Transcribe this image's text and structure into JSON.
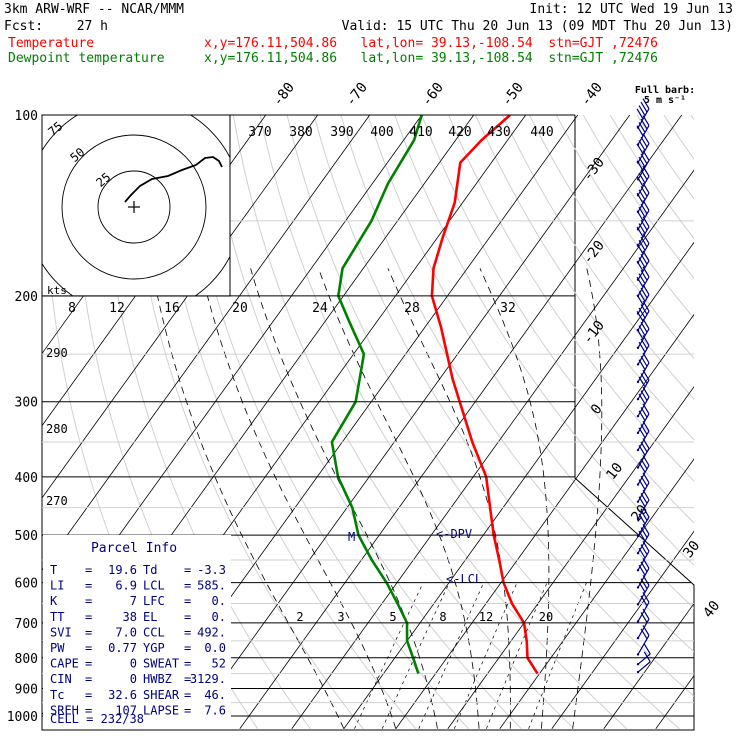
{
  "header": {
    "title": "3km ARW-WRF -- NCAR/MMM",
    "init": "Init: 12 UTC Wed 19 Jun 13",
    "fcst_label": "Fcst:",
    "fcst_value": "27 h",
    "valid": "Valid: 15 UTC Thu 20 Jun 13 (09 MDT Thu 20 Jun 13)",
    "temp_label": "Temperature",
    "dew_label": "Dewpoint temperature",
    "temp_loc": "x,y=176.11,504.86   lat,lon= 39.13,-108.54  stn=GJT ,72476",
    "dew_loc": "x,y=176.11,504.86   lat,lon= 39.13,-108.54  stn=GJT ,72476"
  },
  "colors": {
    "temperature": "#ff0000",
    "dewpoint": "#008000",
    "annotation": "#000080",
    "grid": "#000000",
    "dashed": "#000000",
    "guide": "#d0d0d0",
    "wind": "#000080"
  },
  "barb_legend": {
    "line1": "Full barb:",
    "line2": "5 m s⁻¹"
  },
  "chart_data": {
    "type": "line",
    "title": "",
    "xlabel": "",
    "ylabel": "",
    "y_scale": "log",
    "y_axis": {
      "label": "",
      "ticks": [
        100,
        200,
        300,
        400,
        500,
        600,
        700,
        800,
        900,
        1000
      ]
    },
    "isotherm_labels": [
      "-80",
      "-70",
      "-60",
      "-50",
      "-40",
      "-30",
      "-20",
      "-10",
      "0",
      "10",
      "20",
      "30",
      "40"
    ],
    "theta_labels": [
      "370",
      "380",
      "390",
      "400",
      "410",
      "420",
      "430",
      "440"
    ],
    "theta_left_labels": [
      "290",
      "280",
      "270"
    ],
    "mixing_ratio_labels": [
      "2",
      "3",
      "5",
      "8",
      "12",
      "20"
    ],
    "markers": [
      {
        "label": "M",
        "pressure": 500
      },
      {
        "label": "<-DPV",
        "pressure": 500
      },
      {
        "label": "<-LCL",
        "pressure": 585
      }
    ],
    "series": [
      {
        "name": "Temperature",
        "color": "#ff0000",
        "points": [
          {
            "p": 850,
            "t": 19.6
          },
          {
            "p": 800,
            "t": 15.5
          },
          {
            "p": 750,
            "t": 13.0
          },
          {
            "p": 700,
            "t": 10.0
          },
          {
            "p": 650,
            "t": 5.0
          },
          {
            "p": 600,
            "t": 0.5
          },
          {
            "p": 550,
            "t": -3.5
          },
          {
            "p": 500,
            "t": -8.0
          },
          {
            "p": 450,
            "t": -12.5
          },
          {
            "p": 400,
            "t": -17.5
          },
          {
            "p": 350,
            "t": -25.0
          },
          {
            "p": 300,
            "t": -33.0
          },
          {
            "p": 275,
            "t": -37.5
          },
          {
            "p": 250,
            "t": -42.0
          },
          {
            "p": 225,
            "t": -47.0
          },
          {
            "p": 200,
            "t": -53.0
          },
          {
            "p": 180,
            "t": -56.5
          },
          {
            "p": 160,
            "t": -59.0
          },
          {
            "p": 140,
            "t": -61.5
          },
          {
            "p": 120,
            "t": -66.0
          },
          {
            "p": 110,
            "t": -65.0
          },
          {
            "p": 100,
            "t": -63.0
          }
        ]
      },
      {
        "name": "Dewpoint temperature",
        "color": "#008000",
        "points": [
          {
            "p": 850,
            "t": -3.3
          },
          {
            "p": 800,
            "t": -6.5
          },
          {
            "p": 750,
            "t": -10.0
          },
          {
            "p": 700,
            "t": -12.5
          },
          {
            "p": 650,
            "t": -17.0
          },
          {
            "p": 600,
            "t": -22.0
          },
          {
            "p": 550,
            "t": -28.0
          },
          {
            "p": 500,
            "t": -34.0
          },
          {
            "p": 450,
            "t": -39.0
          },
          {
            "p": 400,
            "t": -46.0
          },
          {
            "p": 350,
            "t": -52.0
          },
          {
            "p": 300,
            "t": -53.0
          },
          {
            "p": 250,
            "t": -58.0
          },
          {
            "p": 220,
            "t": -65.5
          },
          {
            "p": 200,
            "t": -71.0
          },
          {
            "p": 180,
            "t": -74.0
          },
          {
            "p": 150,
            "t": -75.0
          },
          {
            "p": 130,
            "t": -77.0
          },
          {
            "p": 110,
            "t": -78.0
          },
          {
            "p": 100,
            "t": -80.0
          }
        ]
      }
    ],
    "winds": [
      {
        "p": 105,
        "speed_barbs": 4
      },
      {
        "p": 112,
        "speed_barbs": 4
      },
      {
        "p": 120,
        "speed_barbs": 4
      },
      {
        "p": 128,
        "speed_barbs": 4
      },
      {
        "p": 136,
        "speed_barbs": 4
      },
      {
        "p": 145,
        "speed_barbs": 4
      },
      {
        "p": 155,
        "speed_barbs": 4
      },
      {
        "p": 165,
        "speed_barbs": 4
      },
      {
        "p": 176,
        "speed_barbs": 4
      },
      {
        "p": 188,
        "speed_barbs": 4
      },
      {
        "p": 200,
        "speed_barbs": 4
      },
      {
        "p": 214,
        "speed_barbs": 4
      },
      {
        "p": 228,
        "speed_barbs": 4
      },
      {
        "p": 244,
        "speed_barbs": 4
      },
      {
        "p": 260,
        "speed_barbs": 3
      },
      {
        "p": 278,
        "speed_barbs": 3
      },
      {
        "p": 297,
        "speed_barbs": 3
      },
      {
        "p": 317,
        "speed_barbs": 3
      },
      {
        "p": 338,
        "speed_barbs": 3
      },
      {
        "p": 361,
        "speed_barbs": 3
      },
      {
        "p": 386,
        "speed_barbs": 3
      },
      {
        "p": 412,
        "speed_barbs": 3
      },
      {
        "p": 440,
        "speed_barbs": 3
      },
      {
        "p": 470,
        "speed_barbs": 3
      },
      {
        "p": 502,
        "speed_barbs": 3
      },
      {
        "p": 536,
        "speed_barbs": 3
      },
      {
        "p": 572,
        "speed_barbs": 3
      },
      {
        "p": 611,
        "speed_barbs": 3
      },
      {
        "p": 652,
        "speed_barbs": 3
      },
      {
        "p": 696,
        "speed_barbs": 2
      },
      {
        "p": 742,
        "speed_barbs": 2
      },
      {
        "p": 790,
        "speed_barbs": 2
      },
      {
        "p": 820,
        "speed_barbs": 1
      },
      {
        "p": 845,
        "speed_barbs": 1
      }
    ]
  },
  "hodograph": {
    "unit_label": "kts",
    "ring_labels": [
      "75",
      "50",
      "25"
    ],
    "scale_labels": [
      "8",
      "12",
      "16",
      "20",
      "24",
      "28",
      "32"
    ]
  },
  "parcel_info": {
    "title": "Parcel Info",
    "rows": [
      {
        "k1": "T",
        "v1": "19.6",
        "k2": "Td",
        "v2": "-3.3"
      },
      {
        "k1": "LI",
        "v1": "6.9",
        "k2": "LCL",
        "v2": "585."
      },
      {
        "k1": "K",
        "v1": "7",
        "k2": "LFC",
        "v2": "0."
      },
      {
        "k1": "TT",
        "v1": "38",
        "k2": "EL",
        "v2": "0."
      },
      {
        "k1": "SVI",
        "v1": "7.0",
        "k2": "CCL",
        "v2": "492."
      },
      {
        "k1": "PW",
        "v1": "0.77",
        "k2": "YGP",
        "v2": "0.0"
      },
      {
        "k1": "CAPE",
        "v1": "0",
        "k2": "SWEAT",
        "v2": "52"
      },
      {
        "k1": "CIN",
        "v1": "0",
        "k2": "HWBZ",
        "v2": "3129."
      },
      {
        "k1": "Tc",
        "v1": "32.6",
        "k2": "SHEAR",
        "v2": "46."
      },
      {
        "k1": "SREH",
        "v1": "107",
        "k2": "LAPSE",
        "v2": "7.6"
      }
    ],
    "cell": "CELL = 232/38"
  }
}
